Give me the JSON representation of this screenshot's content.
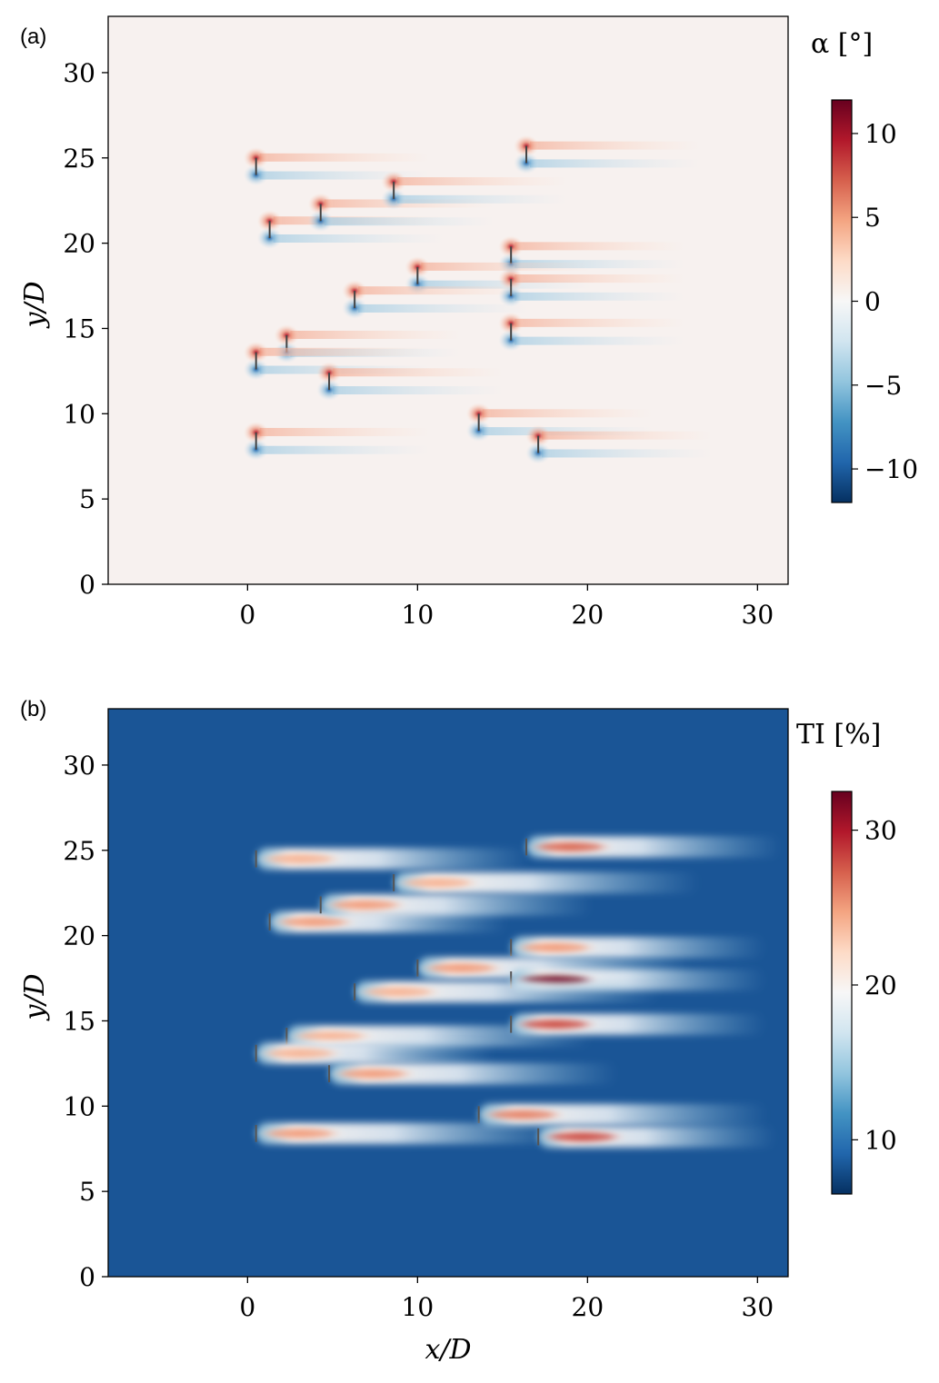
{
  "panels": {
    "a": {
      "label": "(a)",
      "colorbar_label": "α [°]",
      "colormap": [
        "#053061",
        "#2166ac",
        "#4393c3",
        "#92c5de",
        "#d1e5f0",
        "#f7f7f7",
        "#fddbc7",
        "#f4a582",
        "#d6604d",
        "#b2182b",
        "#67001f"
      ],
      "background_color": "#f7f1ef"
    },
    "b": {
      "label": "(b)",
      "colorbar_label": "TI [%]",
      "xlabel": "x/D",
      "colormap": [
        "#053061",
        "#2166ac",
        "#4393c3",
        "#92c5de",
        "#d1e5f0",
        "#f7f7f7",
        "#fddbc7",
        "#f4a582",
        "#d6604d",
        "#b2182b",
        "#67001f"
      ],
      "background_color": "#1a5596"
    }
  },
  "chart_data": [
    {
      "type": "heatmap",
      "panel": "a",
      "title": "",
      "xlabel": "",
      "ylabel": "y/D",
      "xlim": [
        -8.2,
        31.8
      ],
      "ylim": [
        0,
        33.3
      ],
      "xticks": [
        0,
        10,
        20,
        30
      ],
      "yticks": [
        0,
        5,
        10,
        15,
        20,
        25,
        30
      ],
      "colorbar": {
        "label": "α [°]",
        "range": [
          -12,
          12
        ],
        "ticks": [
          10,
          5,
          0,
          -5,
          -10
        ],
        "tick_labels": [
          "10",
          "5",
          "0",
          "−5",
          "−10"
        ]
      },
      "turbines": [
        {
          "x": 0.5,
          "y": 24.5
        },
        {
          "x": 1.3,
          "y": 20.8
        },
        {
          "x": 4.3,
          "y": 21.8
        },
        {
          "x": 8.6,
          "y": 23.1
        },
        {
          "x": 16.4,
          "y": 25.2
        },
        {
          "x": 15.5,
          "y": 19.3
        },
        {
          "x": 10.0,
          "y": 18.1
        },
        {
          "x": 15.5,
          "y": 17.4
        },
        {
          "x": 6.3,
          "y": 16.7
        },
        {
          "x": 2.3,
          "y": 14.1
        },
        {
          "x": 0.5,
          "y": 13.1
        },
        {
          "x": 15.5,
          "y": 14.8
        },
        {
          "x": 4.8,
          "y": 11.9
        },
        {
          "x": 13.6,
          "y": 9.5
        },
        {
          "x": 0.5,
          "y": 8.4
        },
        {
          "x": 17.1,
          "y": 8.2
        }
      ]
    },
    {
      "type": "heatmap",
      "panel": "b",
      "title": "",
      "xlabel": "x/D",
      "ylabel": "y/D",
      "xlim": [
        -8.2,
        31.8
      ],
      "ylim": [
        0,
        33.3
      ],
      "xticks": [
        0,
        10,
        20,
        30
      ],
      "yticks": [
        0,
        5,
        10,
        15,
        20,
        25,
        30
      ],
      "colorbar": {
        "label": "TI [%]",
        "range": [
          6.5,
          32.5
        ],
        "ticks": [
          30,
          20,
          10
        ],
        "tick_labels": [
          "30",
          "20",
          "10"
        ]
      },
      "wakes": [
        {
          "x": 0.5,
          "y": 24.5,
          "peak_ti": 24,
          "length": 16
        },
        {
          "x": 1.3,
          "y": 20.8,
          "peak_ti": 25,
          "length": 14
        },
        {
          "x": 4.3,
          "y": 21.8,
          "peak_ti": 25,
          "length": 16
        },
        {
          "x": 8.6,
          "y": 23.1,
          "peak_ti": 24,
          "length": 18
        },
        {
          "x": 16.4,
          "y": 25.2,
          "peak_ti": 27,
          "length": 15
        },
        {
          "x": 15.5,
          "y": 19.3,
          "peak_ti": 25,
          "length": 15
        },
        {
          "x": 10.0,
          "y": 18.1,
          "peak_ti": 25,
          "length": 16
        },
        {
          "x": 15.5,
          "y": 17.4,
          "peak_ti": 32,
          "length": 15
        },
        {
          "x": 6.3,
          "y": 16.7,
          "peak_ti": 24,
          "length": 18
        },
        {
          "x": 2.3,
          "y": 14.1,
          "peak_ti": 24,
          "length": 18
        },
        {
          "x": 0.5,
          "y": 13.1,
          "peak_ti": 24,
          "length": 14
        },
        {
          "x": 15.5,
          "y": 14.8,
          "peak_ti": 28,
          "length": 15
        },
        {
          "x": 4.8,
          "y": 11.9,
          "peak_ti": 25,
          "length": 17
        },
        {
          "x": 13.6,
          "y": 9.5,
          "peak_ti": 26,
          "length": 17
        },
        {
          "x": 0.5,
          "y": 8.4,
          "peak_ti": 25,
          "length": 18
        },
        {
          "x": 17.1,
          "y": 8.2,
          "peak_ti": 28,
          "length": 14
        }
      ]
    }
  ]
}
